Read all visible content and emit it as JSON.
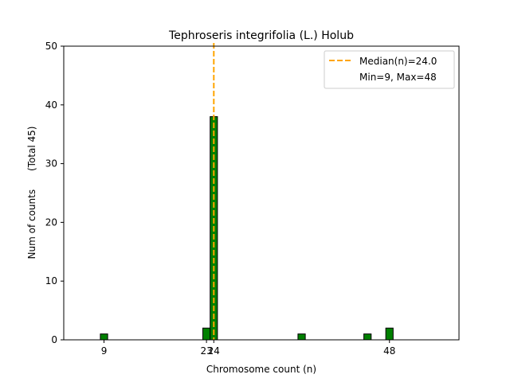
{
  "chart_data": {
    "type": "bar",
    "title": "Tephroseris integrifolia (L.) Holub",
    "xlabel": "Chromosome count (n)",
    "ylabel": "Num of counts      (Total 45)",
    "xlim": [
      3.5,
      57.5
    ],
    "ylim": [
      0,
      50
    ],
    "xticks": [
      9,
      23,
      24,
      48
    ],
    "yticks": [
      0,
      10,
      20,
      30,
      40,
      50
    ],
    "bars": [
      {
        "x": 9,
        "value": 1
      },
      {
        "x": 23,
        "value": 2
      },
      {
        "x": 24,
        "value": 38
      },
      {
        "x": 36,
        "value": 1
      },
      {
        "x": 45,
        "value": 1
      },
      {
        "x": 48,
        "value": 2
      }
    ],
    "bar_width": 1,
    "baseline_range": [
      4,
      52
    ],
    "median_line": {
      "x": 24,
      "label": "Median(n)=24.0"
    },
    "legend": {
      "placement": "top-right",
      "entries": [
        "Median(n)=24.0",
        "Min=9, Max=48"
      ]
    },
    "grid": false,
    "colors": {
      "bar_fill": "#008000",
      "bar_edge": "#000000",
      "median_line": "#FFA500"
    }
  }
}
